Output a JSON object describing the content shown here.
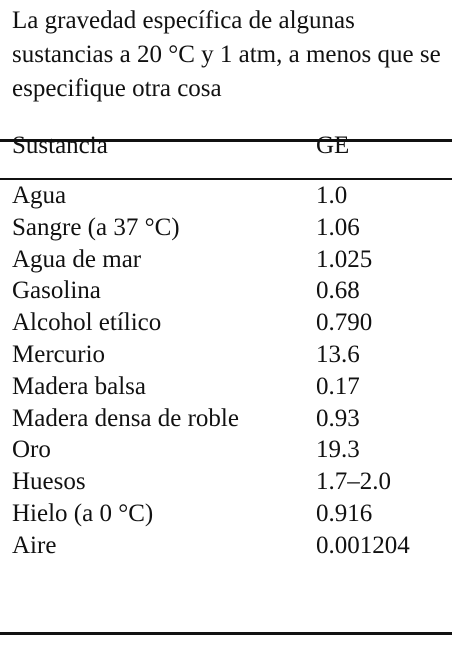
{
  "caption": "La gravedad específica de algunas sustancias a 20 °C y 1 atm, a menos que se especifique otra cosa",
  "columns": {
    "substance": "Sustancia",
    "sg": "GE"
  },
  "rows": [
    {
      "substance": "Agua",
      "sg": "1.0"
    },
    {
      "substance": "Sangre (a 37 °C)",
      "sg": "1.06"
    },
    {
      "substance": "Agua de mar",
      "sg": "1.025"
    },
    {
      "substance": "Gasolina",
      "sg": "0.68"
    },
    {
      "substance": "Alcohol etílico",
      "sg": "0.790"
    },
    {
      "substance": "Mercurio",
      "sg": "13.6"
    },
    {
      "substance": "Madera balsa",
      "sg": "0.17"
    },
    {
      "substance": "Madera densa de roble",
      "sg": "0.93"
    },
    {
      "substance": "Oro",
      "sg": "19.3"
    },
    {
      "substance": "Huesos",
      "sg": "1.7–2.0"
    },
    {
      "substance": "Hielo (a 0 °C)",
      "sg": "0.916"
    },
    {
      "substance": "Aire",
      "sg": "0.001204"
    }
  ]
}
